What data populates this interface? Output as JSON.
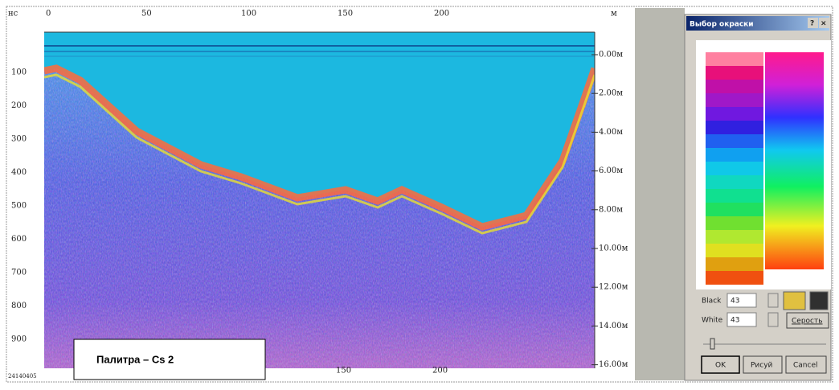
{
  "radargram": {
    "top_axis": {
      "unit_left": "нс",
      "labels": [
        "0",
        "50",
        "100",
        "150",
        "200"
      ],
      "unit_right": "м"
    },
    "left_axis": {
      "labels": [
        "100",
        "200",
        "300",
        "400",
        "500",
        "600",
        "700",
        "800",
        "900"
      ]
    },
    "right_axis": {
      "labels": [
        "0.00м",
        "2.00м",
        "4.00м",
        "6.00м",
        "8.00м",
        "10.00м",
        "12.00м",
        "14.00м",
        "16.00м"
      ]
    },
    "bottom_axis": {
      "file_id": "24140405",
      "labels": [
        "150",
        "200"
      ]
    },
    "caption": "Палитра – Cs 2"
  },
  "dialog": {
    "title": "Выбор окраски",
    "help": "?",
    "close": "×",
    "black_label": "Black",
    "black_value": "43",
    "white_label": "White",
    "white_value": "43",
    "gray_button": "Серость",
    "ok_button": "OK",
    "draw_button": "Рисуй",
    "cancel_button": "Cancel"
  }
}
